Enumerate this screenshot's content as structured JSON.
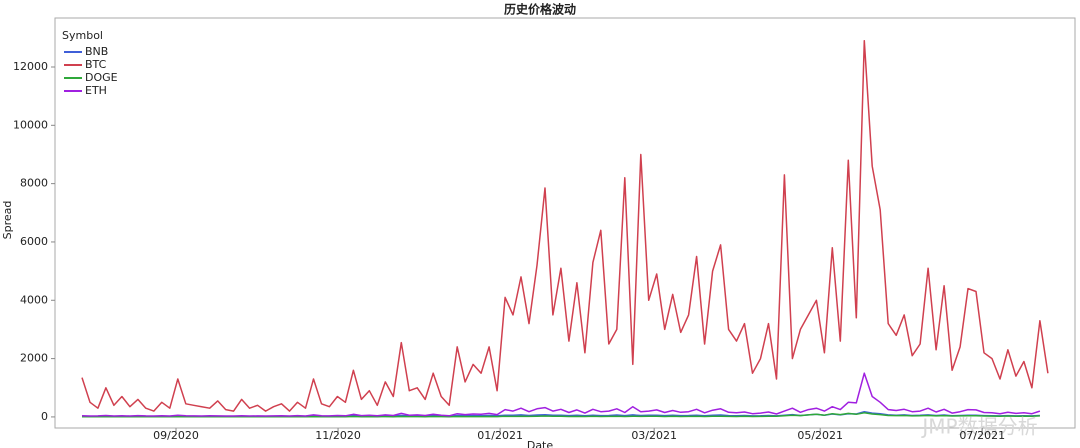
{
  "chart_data": {
    "type": "line",
    "title": "历史价格波动",
    "xlabel": "Date",
    "ylabel": "Spread",
    "legend_title": "Symbol",
    "legend": "top-left",
    "watermark": "JMP数据分析",
    "xlim": [
      -3.38,
      124.4
    ],
    "ylim": [
      -380,
      13680
    ],
    "xticks": [
      {
        "value": 11.78,
        "label": "09/2020"
      },
      {
        "value": 32.08,
        "label": "11/2020"
      },
      {
        "value": 52.38,
        "label": "01/2021"
      },
      {
        "value": 71.68,
        "label": "03/2021"
      },
      {
        "value": 92.48,
        "label": "05/2021"
      },
      {
        "value": 112.78,
        "label": "07/2021"
      }
    ],
    "yticks": [
      0,
      2000,
      4000,
      6000,
      8000,
      10000,
      12000
    ],
    "series": [
      {
        "name": "BNB",
        "color": "#3f5fd8",
        "values": [
          20,
          25,
          18,
          30,
          22,
          25,
          20,
          28,
          22,
          20,
          25,
          20,
          35,
          25,
          22,
          20,
          25,
          22,
          20,
          20,
          25,
          20,
          22,
          20,
          22,
          25,
          20,
          28,
          20,
          40,
          25,
          22,
          30,
          25,
          45,
          28,
          35,
          25,
          40,
          30,
          50,
          35,
          40,
          30,
          45,
          35,
          25,
          50,
          40,
          45,
          40,
          50,
          40,
          60,
          55,
          70,
          50,
          65,
          75,
          55,
          60,
          45,
          55,
          40,
          60,
          45,
          50,
          65,
          45,
          70,
          50,
          55,
          60,
          45,
          55,
          45,
          50,
          60,
          40,
          55,
          65,
          45,
          40,
          50,
          35,
          40,
          50,
          35,
          60,
          80,
          50,
          70,
          90,
          60,
          100,
          70,
          110,
          100,
          180,
          130,
          110,
          70,
          60,
          70,
          50,
          55,
          70,
          50,
          65,
          40,
          50,
          60,
          55,
          45,
          40,
          35,
          45,
          35,
          40,
          35,
          50
        ]
      },
      {
        "name": "BTC",
        "color": "#d0404f",
        "values": [
          1350,
          500,
          300,
          1000,
          400,
          700,
          350,
          600,
          300,
          200,
          500,
          300,
          1300,
          450,
          400,
          350,
          300,
          550,
          250,
          200,
          600,
          300,
          400,
          200,
          350,
          450,
          200,
          500,
          300,
          1300,
          450,
          350,
          700,
          500,
          1600,
          600,
          900,
          400,
          1200,
          700,
          2550,
          900,
          1000,
          600,
          1500,
          700,
          400,
          2400,
          1200,
          1800,
          1500,
          2400,
          900,
          4100,
          3500,
          4800,
          3200,
          5200,
          7850,
          3500,
          5100,
          2600,
          4600,
          2200,
          5300,
          6400,
          2500,
          3000,
          8200,
          1800,
          9000,
          4000,
          4900,
          3000,
          4200,
          2900,
          3500,
          5500,
          2500,
          5000,
          5900,
          3000,
          2600,
          3200,
          1500,
          2000,
          3200,
          1300,
          8300,
          2000,
          3000,
          3500,
          4000,
          2200,
          5800,
          2600,
          8800,
          3400,
          12900,
          8600,
          7100,
          3200,
          2800,
          3500,
          2100,
          2500,
          5100,
          2300,
          4500,
          1600,
          2400,
          4400,
          4300,
          2200,
          2000,
          1300,
          2300,
          1400,
          1900,
          1000,
          3300,
          1500
        ]
      },
      {
        "name": "DOGE",
        "color": "#2fa83a",
        "values": [
          8,
          6,
          7,
          9,
          6,
          8,
          6,
          8,
          7,
          6,
          8,
          6,
          10,
          8,
          7,
          6,
          8,
          7,
          6,
          6,
          8,
          6,
          7,
          6,
          7,
          8,
          6,
          9,
          6,
          12,
          8,
          7,
          9,
          8,
          14,
          9,
          11,
          8,
          12,
          9,
          15,
          11,
          12,
          9,
          13,
          10,
          8,
          14,
          11,
          12,
          12,
          14,
          11,
          20,
          18,
          22,
          18,
          25,
          30,
          20,
          22,
          15,
          18,
          14,
          20,
          16,
          18,
          22,
          16,
          25,
          18,
          20,
          22,
          16,
          20,
          16,
          18,
          22,
          15,
          20,
          25,
          18,
          16,
          20,
          15,
          18,
          25,
          20,
          40,
          60,
          45,
          70,
          90,
          60,
          110,
          80,
          120,
          90,
          140,
          100,
          80,
          50,
          45,
          50,
          35,
          40,
          50,
          35,
          45,
          30,
          35,
          40,
          38,
          30,
          28,
          25,
          30,
          25,
          28,
          25,
          35
        ]
      },
      {
        "name": "ETH",
        "color": "#a020e0",
        "values": [
          40,
          30,
          35,
          50,
          30,
          40,
          30,
          45,
          35,
          30,
          40,
          30,
          60,
          40,
          35,
          30,
          40,
          35,
          30,
          30,
          40,
          30,
          35,
          30,
          35,
          40,
          30,
          45,
          30,
          70,
          40,
          35,
          50,
          40,
          90,
          45,
          60,
          40,
          70,
          50,
          120,
          60,
          70,
          50,
          90,
          60,
          40,
          110,
          80,
          100,
          90,
          120,
          80,
          250,
          200,
          300,
          180,
          280,
          320,
          200,
          260,
          150,
          240,
          130,
          260,
          180,
          200,
          280,
          150,
          350,
          180,
          200,
          240,
          150,
          220,
          160,
          180,
          260,
          140,
          230,
          280,
          160,
          140,
          170,
          110,
          130,
          170,
          100,
          200,
          300,
          160,
          250,
          300,
          200,
          350,
          250,
          500,
          480,
          1500,
          700,
          500,
          250,
          220,
          260,
          180,
          200,
          300,
          170,
          260,
          130,
          180,
          250,
          240,
          150,
          140,
          110,
          160,
          120,
          140,
          110,
          200
        ]
      }
    ]
  }
}
